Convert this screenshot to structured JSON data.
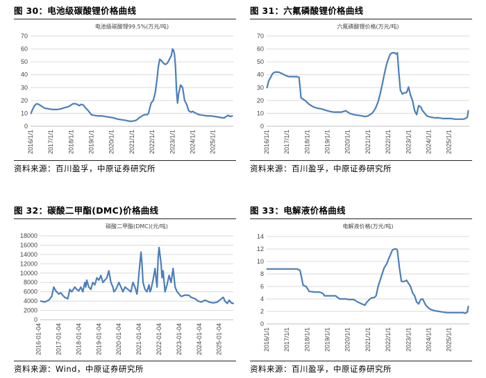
{
  "charts": [
    {
      "figure_title": "图 30：电池级碳酸锂价格曲线",
      "source": "资料来源：百川盈孚，中原证券研究所",
      "chart_data": {
        "type": "line",
        "title": "电池级碳酸锂99.5%(万元/吨)",
        "xlabel": "",
        "ylabel": "",
        "ylim": [
          0,
          70
        ],
        "yticks": [
          0,
          10,
          20,
          30,
          40,
          50,
          60,
          70
        ],
        "x_start": 2015.9,
        "x_end": 2025.9,
        "xticks": [
          2016,
          2017,
          2018,
          2019,
          2020,
          2021,
          2022,
          2023,
          2024,
          2025
        ],
        "x_tick_labels": [
          "2016/1/1",
          "2017/1/1",
          "2018/1/1",
          "2019/1/1",
          "2020/1/1",
          "2021/1/1",
          "2022/1/1",
          "2023/1/1",
          "2024/1/1",
          "2025/1/1"
        ],
        "grid": "horizontal",
        "legend": "none",
        "color": "#4a7ebb",
        "x": [
          2015.92,
          2016.0,
          2016.1,
          2016.2,
          2016.3,
          2016.45,
          2016.6,
          2016.8,
          2017.0,
          2017.2,
          2017.4,
          2017.6,
          2017.75,
          2017.9,
          2018.0,
          2018.1,
          2018.2,
          2018.3,
          2018.4,
          2018.5,
          2018.6,
          2018.75,
          2018.9,
          2019.0,
          2019.2,
          2019.4,
          2019.6,
          2019.8,
          2020.0,
          2020.2,
          2020.4,
          2020.6,
          2020.75,
          2020.85,
          2020.95,
          2021.1,
          2021.3,
          2021.45,
          2021.55,
          2021.65,
          2021.72,
          2021.78,
          2021.85,
          2021.95,
          2022.05,
          2022.15,
          2022.2,
          2022.27,
          2022.35,
          2022.45,
          2022.55,
          2022.65,
          2022.72,
          2022.78,
          2022.85,
          2022.9,
          2022.95,
          2023.0,
          2023.05,
          2023.1,
          2023.15,
          2023.2,
          2023.3,
          2023.4,
          2023.5,
          2023.6,
          2023.7,
          2023.75,
          2023.82,
          2023.9,
          2024.0,
          2024.2,
          2024.4,
          2024.6,
          2024.8,
          2025.0,
          2025.2,
          2025.35,
          2025.45,
          2025.55,
          2025.65,
          2025.75,
          2025.85
        ],
        "y": [
          10,
          13,
          16,
          17.5,
          17,
          15.5,
          14,
          13.5,
          13,
          13,
          13.5,
          14.5,
          15,
          16.5,
          17.5,
          17.5,
          17,
          16,
          17,
          16.5,
          14.5,
          12,
          9,
          8.5,
          8,
          8,
          7.5,
          7,
          6.5,
          5.5,
          5,
          4.5,
          4,
          3.8,
          4,
          4.5,
          7,
          8.5,
          9,
          9,
          10,
          14,
          18,
          20,
          26,
          38,
          46,
          52,
          51,
          49,
          48,
          49,
          51,
          53,
          55,
          60,
          59,
          56,
          46,
          28,
          18,
          25,
          32,
          30,
          20,
          17,
          12,
          11.5,
          11,
          11.5,
          10.5,
          9,
          8.5,
          8,
          8,
          7.5,
          7,
          6.5,
          6.5,
          7.5,
          8.5,
          7.5,
          8
        ]
      }
    },
    {
      "figure_title": "图 31：六氟磷酸锂价格曲线",
      "source": "资料来源：百川盈孚，中原证券研究所",
      "chart_data": {
        "type": "line",
        "title": "六氟磷酸锂价格(万元/吨)",
        "xlabel": "",
        "ylabel": "",
        "ylim": [
          0,
          70
        ],
        "yticks": [
          0,
          10,
          20,
          30,
          40,
          50,
          60,
          70
        ],
        "x_start": 2015.9,
        "x_end": 2025.9,
        "xticks": [
          2016,
          2017,
          2018,
          2019,
          2020,
          2021,
          2022,
          2023,
          2024,
          2025
        ],
        "x_tick_labels": [
          "2016/1/1",
          "2017/1/1",
          "2018/1/1",
          "2019/1/1",
          "2020/1/1",
          "2021/1/1",
          "2022/1/1",
          "2023/1/1",
          "2024/1/1",
          "2025/1/1"
        ],
        "grid": "horizontal",
        "legend": "none",
        "color": "#4a7ebb",
        "x": [
          2015.92,
          2016.0,
          2016.1,
          2016.2,
          2016.3,
          2016.5,
          2016.7,
          2016.9,
          2017.0,
          2017.2,
          2017.4,
          2017.5,
          2017.55,
          2017.6,
          2017.8,
          2018.0,
          2018.2,
          2018.4,
          2018.6,
          2018.8,
          2019.0,
          2019.2,
          2019.4,
          2019.6,
          2019.7,
          2019.8,
          2020.0,
          2020.2,
          2020.4,
          2020.6,
          2020.75,
          2020.9,
          2021.0,
          2021.1,
          2021.2,
          2021.3,
          2021.4,
          2021.5,
          2021.6,
          2021.7,
          2021.8,
          2021.9,
          2022.0,
          2022.1,
          2022.2,
          2022.3,
          2022.35,
          2022.42,
          2022.5,
          2022.6,
          2022.7,
          2022.8,
          2022.85,
          2022.9,
          2023.0,
          2023.1,
          2023.2,
          2023.3,
          2023.4,
          2023.5,
          2023.6,
          2023.7,
          2023.8,
          2024.0,
          2024.2,
          2024.4,
          2024.6,
          2024.8,
          2025.0,
          2025.2,
          2025.4,
          2025.6,
          2025.7,
          2025.8,
          2025.85
        ],
        "y": [
          30,
          35,
          38,
          41,
          42,
          42,
          40.5,
          39,
          38.5,
          38.5,
          38.5,
          38,
          30,
          22,
          20,
          17,
          15,
          14,
          13.5,
          12.5,
          11.5,
          11,
          11,
          11,
          11.5,
          12,
          10,
          9,
          8.5,
          8,
          7.5,
          8,
          9,
          10,
          12,
          15,
          19,
          25,
          32,
          40,
          47,
          52,
          56,
          57,
          57,
          56,
          57,
          42,
          28,
          25,
          26,
          26,
          28,
          30.5,
          24,
          20,
          12,
          9,
          16,
          15,
          12,
          10,
          8,
          7,
          6.5,
          6.5,
          6,
          6,
          6,
          5.5,
          5.5,
          5.5,
          6,
          7,
          12
        ]
      }
    },
    {
      "figure_title": "图 32：碳酸二甲酯(DMC)价格曲线",
      "source": "资料来源：Wind，中原证券研究所",
      "chart_data": {
        "type": "line",
        "title": "碳酸二甲酯(DMC)(元/吨)",
        "xlabel": "",
        "ylabel": "",
        "ylim": [
          0,
          18000
        ],
        "yticks": [
          0,
          2000,
          4000,
          6000,
          8000,
          10000,
          12000,
          14000,
          16000,
          18000
        ],
        "x_start": 2015.98,
        "x_end": 2025.6,
        "xticks": [
          2016,
          2017,
          2018,
          2019,
          2020,
          2021,
          2022,
          2023,
          2024,
          2025
        ],
        "x_tick_labels": [
          "2016-01-04",
          "2017-01-04",
          "2018-01-04",
          "2019-01-04",
          "2020-01-04",
          "2021-01-04",
          "2022-01-04",
          "2023-01-04",
          "2024-01-04",
          "2025-01-04"
        ],
        "grid": "horizontal",
        "legend": "none",
        "color": "#4a7ebb",
        "x": [
          2016.0,
          2016.2,
          2016.4,
          2016.55,
          2016.65,
          2016.75,
          2016.9,
          2017.0,
          2017.1,
          2017.2,
          2017.35,
          2017.45,
          2017.55,
          2017.7,
          2017.8,
          2017.9,
          2018.0,
          2018.1,
          2018.2,
          2018.25,
          2018.3,
          2018.4,
          2018.5,
          2018.6,
          2018.7,
          2018.8,
          2018.9,
          2019.0,
          2019.1,
          2019.2,
          2019.3,
          2019.4,
          2019.5,
          2019.6,
          2019.65,
          2019.75,
          2019.9,
          2020.0,
          2020.1,
          2020.2,
          2020.35,
          2020.5,
          2020.6,
          2020.7,
          2020.8,
          2020.85,
          2020.9,
          2021.0,
          2021.05,
          2021.1,
          2021.2,
          2021.3,
          2021.4,
          2021.45,
          2021.5,
          2021.6,
          2021.7,
          2021.75,
          2021.8,
          2021.85,
          2021.9,
          2022.0,
          2022.05,
          2022.1,
          2022.2,
          2022.3,
          2022.4,
          2022.5,
          2022.6,
          2022.7,
          2022.8,
          2022.9,
          2023.0,
          2023.2,
          2023.4,
          2023.5,
          2023.7,
          2023.85,
          2024.0,
          2024.2,
          2024.4,
          2024.6,
          2024.8,
          2025.0,
          2025.1,
          2025.2,
          2025.3,
          2025.4,
          2025.5,
          2025.6
        ],
        "y": [
          4000,
          3800,
          4200,
          5000,
          7000,
          6200,
          5500,
          5800,
          5200,
          4800,
          4500,
          6500,
          6000,
          7000,
          6500,
          6200,
          7000,
          6000,
          8000,
          7000,
          8500,
          7000,
          6500,
          8000,
          7500,
          9000,
          8500,
          9500,
          8000,
          8500,
          9000,
          10500,
          8000,
          7000,
          6000,
          6500,
          8000,
          7000,
          6000,
          7000,
          6500,
          6000,
          8000,
          7000,
          5500,
          7500,
          10000,
          14500,
          12000,
          8000,
          6500,
          6000,
          7500,
          6000,
          6500,
          8500,
          11000,
          9000,
          7000,
          13000,
          15500,
          12000,
          9000,
          10500,
          6000,
          7500,
          9500,
          8000,
          11000,
          7000,
          6000,
          5500,
          5000,
          5300,
          5200,
          4800,
          4500,
          4000,
          3800,
          4200,
          3800,
          3600,
          3800,
          4500,
          4800,
          3900,
          3500,
          4200,
          3600,
          3500
        ]
      }
    },
    {
      "figure_title": "图 33：电解液价格曲线",
      "source": "资料来源：百川盈孚，中原证券研究所",
      "chart_data": {
        "type": "line",
        "title": "电解液价格(万元/吨)",
        "xlabel": "",
        "ylabel": "",
        "ylim": [
          0,
          14
        ],
        "yticks": [
          0,
          2,
          4,
          6,
          8,
          10,
          12,
          14
        ],
        "x_start": 2015.9,
        "x_end": 2025.9,
        "xticks": [
          2016,
          2017,
          2018,
          2019,
          2020,
          2021,
          2022,
          2023,
          2024,
          2025
        ],
        "x_tick_labels": [
          "2016/1/1",
          "2017/1/1",
          "2018/1/1",
          "2019/1/1",
          "2020/1/1",
          "2021/1/1",
          "2022/1/1",
          "2023/1/1",
          "2024/1/1",
          "2025/1/1"
        ],
        "grid": "horizontal",
        "legend": "none",
        "color": "#4a7ebb",
        "x": [
          2015.92,
          2016.5,
          2017.0,
          2017.4,
          2017.55,
          2017.62,
          2017.7,
          2017.85,
          2018.0,
          2018.3,
          2018.5,
          2018.6,
          2018.7,
          2018.75,
          2019.0,
          2019.3,
          2019.5,
          2019.8,
          2020.0,
          2020.2,
          2020.4,
          2020.6,
          2020.75,
          2020.85,
          2021.0,
          2021.1,
          2021.2,
          2021.3,
          2021.4,
          2021.5,
          2021.6,
          2021.7,
          2021.8,
          2021.85,
          2021.9,
          2022.0,
          2022.1,
          2022.2,
          2022.3,
          2022.35,
          2022.45,
          2022.55,
          2022.7,
          2022.8,
          2022.9,
          2023.0,
          2023.1,
          2023.2,
          2023.3,
          2023.4,
          2023.5,
          2023.6,
          2023.75,
          2023.9,
          2024.0,
          2024.2,
          2024.4,
          2024.6,
          2024.8,
          2025.0,
          2025.2,
          2025.4,
          2025.6,
          2025.7,
          2025.8,
          2025.85
        ],
        "y": [
          8.8,
          8.8,
          8.8,
          8.8,
          8.6,
          7.5,
          6.2,
          6.0,
          5.2,
          5.1,
          5.1,
          5.0,
          4.8,
          4.5,
          4.5,
          4.5,
          4.0,
          4.0,
          3.9,
          3.9,
          3.5,
          3.2,
          3.0,
          3.5,
          4.0,
          4.2,
          4.2,
          4.5,
          6.0,
          7.0,
          8.0,
          9.0,
          9.5,
          9.8,
          10.3,
          11.0,
          11.8,
          12.0,
          12.0,
          11.8,
          9.0,
          6.8,
          6.8,
          7.0,
          6.5,
          6.0,
          5.0,
          4.5,
          3.5,
          3.2,
          3.9,
          4.0,
          3.0,
          2.5,
          2.3,
          2.1,
          2.0,
          1.9,
          1.8,
          1.8,
          1.8,
          1.8,
          1.8,
          1.7,
          1.9,
          2.8
        ]
      }
    }
  ]
}
